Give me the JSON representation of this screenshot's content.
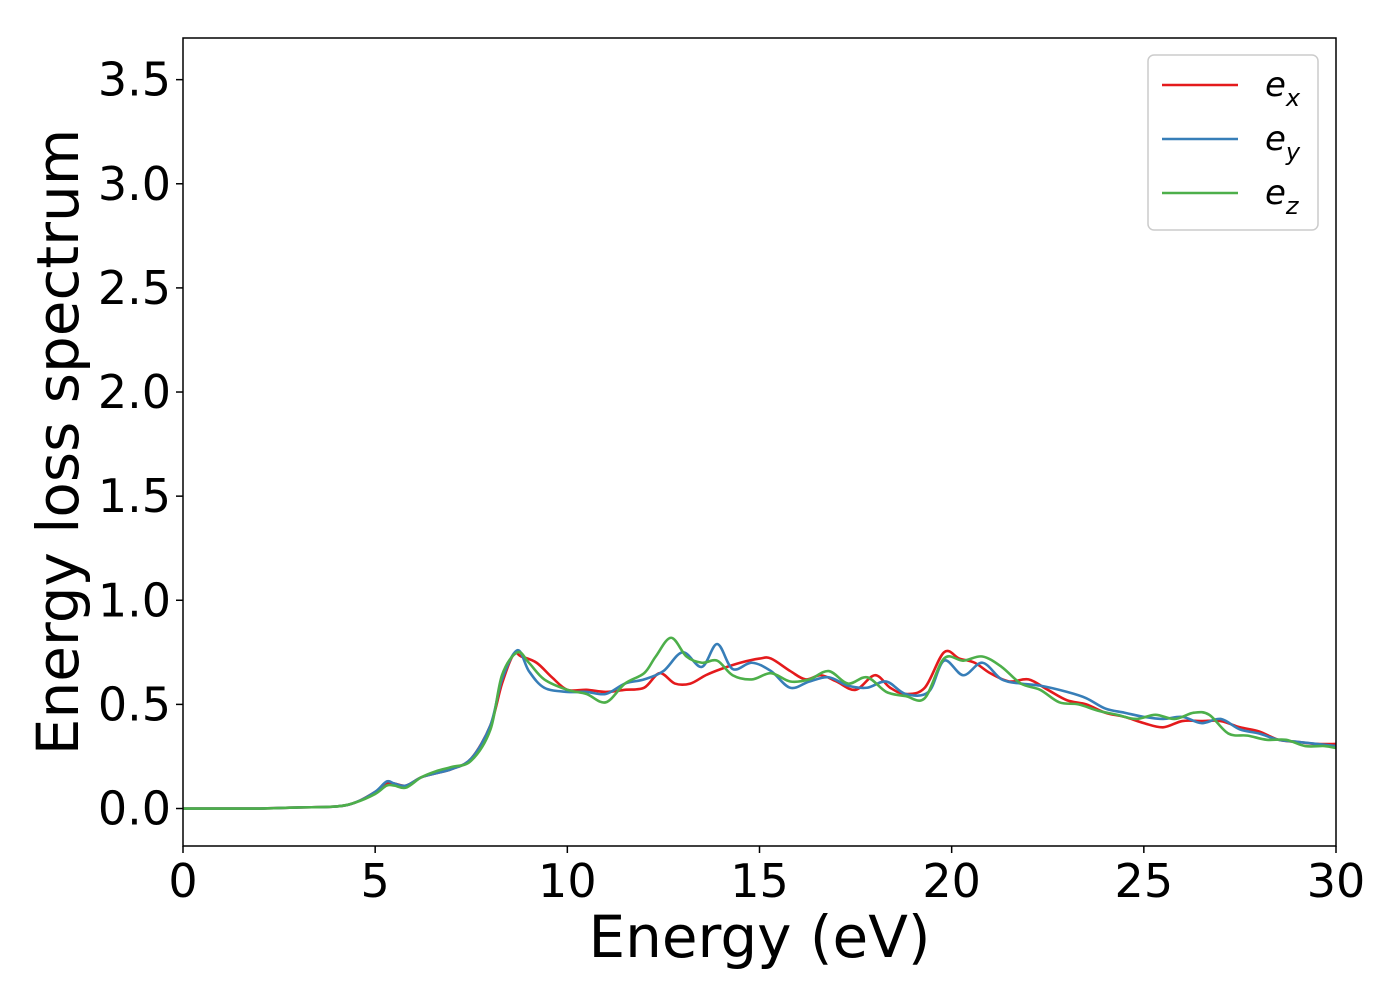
{
  "chart_data": {
    "type": "line",
    "xlabel": "Energy (eV)",
    "ylabel": "Energy loss spectrum",
    "xlim": [
      0,
      30
    ],
    "ylim": [
      -0.18,
      3.7
    ],
    "xticks": [
      0,
      5,
      10,
      15,
      20,
      25,
      30
    ],
    "yticks": [
      0.0,
      0.5,
      1.0,
      1.5,
      2.0,
      2.5,
      3.0,
      3.5
    ],
    "xtick_labels": [
      "0",
      "5",
      "10",
      "15",
      "20",
      "25",
      "30"
    ],
    "ytick_labels": [
      "0.0",
      "0.5",
      "1.0",
      "1.5",
      "2.0",
      "2.5",
      "3.0",
      "3.5"
    ],
    "grid": false,
    "legend_position": "top-right",
    "series": [
      {
        "name": "e",
        "subscript": "x",
        "color": "#e41a1c",
        "points": [
          [
            0,
            0
          ],
          [
            1,
            0
          ],
          [
            2,
            0
          ],
          [
            3,
            0.005
          ],
          [
            4,
            0.01
          ],
          [
            4.5,
            0.03
          ],
          [
            5,
            0.08
          ],
          [
            5.3,
            0.12
          ],
          [
            5.5,
            0.12
          ],
          [
            5.8,
            0.11
          ],
          [
            6.2,
            0.15
          ],
          [
            6.6,
            0.17
          ],
          [
            7,
            0.19
          ],
          [
            7.5,
            0.24
          ],
          [
            8,
            0.4
          ],
          [
            8.3,
            0.6
          ],
          [
            8.6,
            0.74
          ],
          [
            8.8,
            0.73
          ],
          [
            9.2,
            0.7
          ],
          [
            9.6,
            0.63
          ],
          [
            10,
            0.57
          ],
          [
            10.5,
            0.57
          ],
          [
            11,
            0.56
          ],
          [
            11.5,
            0.57
          ],
          [
            12,
            0.58
          ],
          [
            12.4,
            0.65
          ],
          [
            12.8,
            0.6
          ],
          [
            13.2,
            0.6
          ],
          [
            13.6,
            0.64
          ],
          [
            14,
            0.67
          ],
          [
            14.5,
            0.7
          ],
          [
            15,
            0.72
          ],
          [
            15.3,
            0.72
          ],
          [
            15.8,
            0.66
          ],
          [
            16.2,
            0.62
          ],
          [
            16.6,
            0.64
          ],
          [
            17,
            0.61
          ],
          [
            17.5,
            0.57
          ],
          [
            18,
            0.64
          ],
          [
            18.4,
            0.58
          ],
          [
            18.8,
            0.55
          ],
          [
            19.3,
            0.58
          ],
          [
            19.8,
            0.75
          ],
          [
            20.2,
            0.72
          ],
          [
            20.6,
            0.7
          ],
          [
            21,
            0.65
          ],
          [
            21.5,
            0.61
          ],
          [
            22,
            0.62
          ],
          [
            22.5,
            0.57
          ],
          [
            23,
            0.52
          ],
          [
            23.5,
            0.5
          ],
          [
            24,
            0.46
          ],
          [
            24.5,
            0.44
          ],
          [
            25,
            0.41
          ],
          [
            25.5,
            0.39
          ],
          [
            26,
            0.42
          ],
          [
            26.5,
            0.42
          ],
          [
            27,
            0.42
          ],
          [
            27.5,
            0.39
          ],
          [
            28,
            0.37
          ],
          [
            28.5,
            0.33
          ],
          [
            29,
            0.32
          ],
          [
            29.5,
            0.31
          ],
          [
            30,
            0.31
          ]
        ]
      },
      {
        "name": "e",
        "subscript": "y",
        "color": "#377eb8",
        "points": [
          [
            0,
            0
          ],
          [
            1,
            0
          ],
          [
            2,
            0
          ],
          [
            3,
            0.005
          ],
          [
            4,
            0.01
          ],
          [
            4.5,
            0.03
          ],
          [
            5,
            0.08
          ],
          [
            5.3,
            0.13
          ],
          [
            5.5,
            0.12
          ],
          [
            5.8,
            0.11
          ],
          [
            6.2,
            0.15
          ],
          [
            6.6,
            0.17
          ],
          [
            7,
            0.19
          ],
          [
            7.5,
            0.24
          ],
          [
            8,
            0.4
          ],
          [
            8.3,
            0.62
          ],
          [
            8.7,
            0.76
          ],
          [
            9,
            0.66
          ],
          [
            9.4,
            0.58
          ],
          [
            10,
            0.56
          ],
          [
            10.5,
            0.56
          ],
          [
            11,
            0.55
          ],
          [
            11.5,
            0.6
          ],
          [
            12,
            0.62
          ],
          [
            12.5,
            0.66
          ],
          [
            13,
            0.75
          ],
          [
            13.5,
            0.68
          ],
          [
            13.9,
            0.79
          ],
          [
            14.3,
            0.67
          ],
          [
            14.8,
            0.7
          ],
          [
            15.3,
            0.66
          ],
          [
            15.8,
            0.58
          ],
          [
            16.3,
            0.61
          ],
          [
            16.8,
            0.63
          ],
          [
            17.3,
            0.59
          ],
          [
            17.8,
            0.58
          ],
          [
            18.3,
            0.61
          ],
          [
            18.8,
            0.55
          ],
          [
            19.4,
            0.56
          ],
          [
            19.8,
            0.71
          ],
          [
            20.3,
            0.64
          ],
          [
            20.8,
            0.7
          ],
          [
            21.3,
            0.62
          ],
          [
            21.8,
            0.6
          ],
          [
            22.3,
            0.59
          ],
          [
            23,
            0.56
          ],
          [
            23.5,
            0.53
          ],
          [
            24,
            0.48
          ],
          [
            24.5,
            0.46
          ],
          [
            25,
            0.44
          ],
          [
            25.5,
            0.43
          ],
          [
            26,
            0.44
          ],
          [
            26.5,
            0.41
          ],
          [
            27,
            0.43
          ],
          [
            27.5,
            0.38
          ],
          [
            28,
            0.36
          ],
          [
            28.5,
            0.33
          ],
          [
            29,
            0.32
          ],
          [
            29.5,
            0.31
          ],
          [
            30,
            0.3
          ]
        ]
      },
      {
        "name": "e",
        "subscript": "z",
        "color": "#4daf4a",
        "points": [
          [
            0,
            0
          ],
          [
            1,
            0
          ],
          [
            2,
            0
          ],
          [
            3,
            0.005
          ],
          [
            4,
            0.01
          ],
          [
            4.5,
            0.03
          ],
          [
            5,
            0.07
          ],
          [
            5.3,
            0.11
          ],
          [
            5.5,
            0.11
          ],
          [
            5.8,
            0.1
          ],
          [
            6.2,
            0.15
          ],
          [
            6.6,
            0.18
          ],
          [
            7,
            0.2
          ],
          [
            7.5,
            0.23
          ],
          [
            8,
            0.38
          ],
          [
            8.3,
            0.64
          ],
          [
            8.7,
            0.75
          ],
          [
            9,
            0.7
          ],
          [
            9.4,
            0.62
          ],
          [
            10,
            0.57
          ],
          [
            10.5,
            0.55
          ],
          [
            11,
            0.51
          ],
          [
            11.5,
            0.6
          ],
          [
            12,
            0.65
          ],
          [
            12.3,
            0.73
          ],
          [
            12.7,
            0.82
          ],
          [
            13.1,
            0.73
          ],
          [
            13.5,
            0.7
          ],
          [
            13.9,
            0.71
          ],
          [
            14.3,
            0.64
          ],
          [
            14.8,
            0.62
          ],
          [
            15.3,
            0.65
          ],
          [
            15.8,
            0.61
          ],
          [
            16.3,
            0.62
          ],
          [
            16.8,
            0.66
          ],
          [
            17.3,
            0.6
          ],
          [
            17.8,
            0.63
          ],
          [
            18.3,
            0.56
          ],
          [
            18.8,
            0.54
          ],
          [
            19.3,
            0.53
          ],
          [
            19.8,
            0.72
          ],
          [
            20.3,
            0.71
          ],
          [
            20.8,
            0.73
          ],
          [
            21.3,
            0.68
          ],
          [
            21.8,
            0.6
          ],
          [
            22.3,
            0.57
          ],
          [
            22.8,
            0.51
          ],
          [
            23.3,
            0.5
          ],
          [
            23.8,
            0.47
          ],
          [
            24.3,
            0.45
          ],
          [
            24.8,
            0.43
          ],
          [
            25.3,
            0.45
          ],
          [
            25.8,
            0.43
          ],
          [
            26.3,
            0.46
          ],
          [
            26.7,
            0.45
          ],
          [
            27.2,
            0.36
          ],
          [
            27.7,
            0.35
          ],
          [
            28.2,
            0.33
          ],
          [
            28.7,
            0.33
          ],
          [
            29.2,
            0.3
          ],
          [
            29.7,
            0.3
          ],
          [
            30,
            0.29
          ]
        ]
      }
    ]
  }
}
